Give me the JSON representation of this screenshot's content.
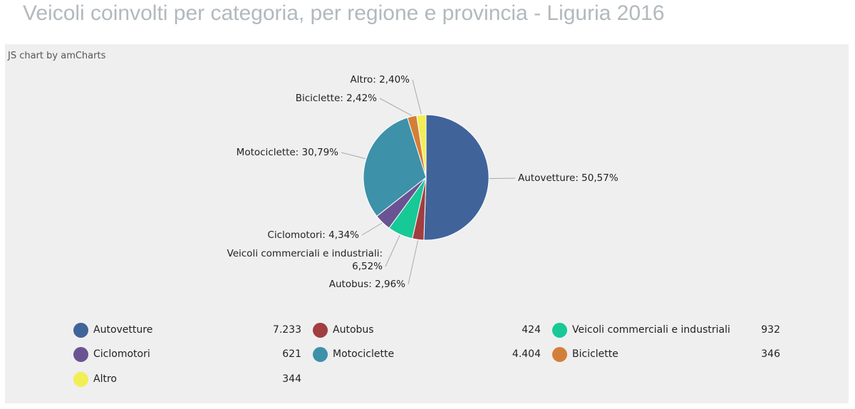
{
  "page": {
    "title": "Veicoli coinvolti per categoria, per regione e provincia - Liguria 2016",
    "credit": "JS chart by amCharts"
  },
  "chart_data": {
    "type": "pie",
    "categories": [
      "Autovetture",
      "Autobus",
      "Veicoli commerciali e industriali",
      "Ciclomotori",
      "Motociclette",
      "Biciclette",
      "Altro"
    ],
    "values": [
      7233,
      424,
      932,
      621,
      4404,
      346,
      344
    ],
    "value_labels": [
      "7.233",
      "424",
      "932",
      "621",
      "4.404",
      "346",
      "344"
    ],
    "percent_labels": [
      "50,57%",
      "2,96%",
      "6,52%",
      "4,34%",
      "30,79%",
      "2,42%",
      "2,40%"
    ],
    "colors": [
      "#40639a",
      "#a23e3f",
      "#17c996",
      "#6a5393",
      "#3d91a9",
      "#d47f39",
      "#f2ee55"
    ],
    "legend_position": "bottom"
  }
}
